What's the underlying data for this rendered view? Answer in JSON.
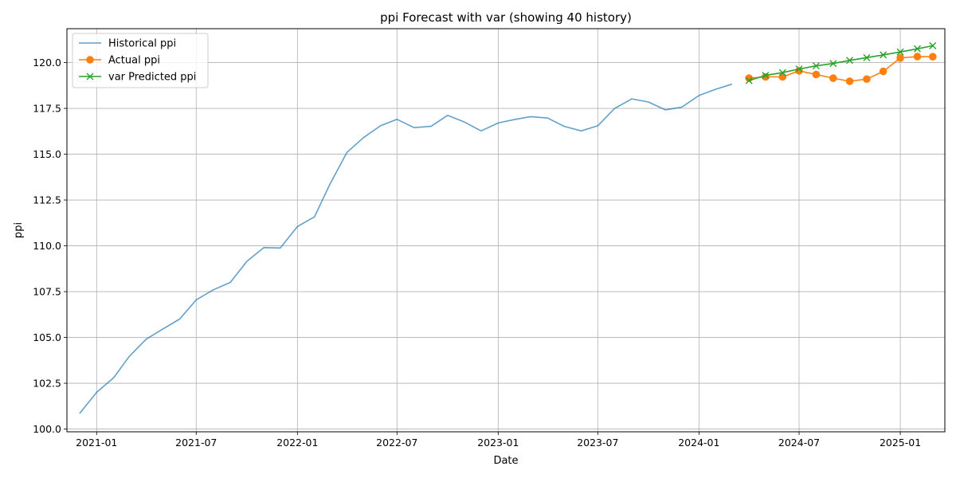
{
  "chart_data": {
    "type": "line",
    "title": "ppi Forecast with var (showing 40 history)",
    "xlabel": "Date",
    "ylabel": "ppi",
    "xlim": [
      "2020-11-08",
      "2025-03-23"
    ],
    "ylim": [
      99.85,
      121.85
    ],
    "grid": true,
    "legend_position": "top-left",
    "x_ticks": [
      "2021-01",
      "2021-07",
      "2022-01",
      "2022-07",
      "2023-01",
      "2023-07",
      "2024-01",
      "2024-07",
      "2025-01"
    ],
    "y_ticks": [
      100.0,
      102.5,
      105.0,
      107.5,
      110.0,
      112.5,
      115.0,
      117.5,
      120.0
    ],
    "series": [
      {
        "name": "Historical ppi",
        "color": "#1f77b4",
        "opacity": 0.7,
        "marker": "none",
        "points": [
          [
            "2020-12-01",
            100.85
          ],
          [
            "2021-01-01",
            102.0
          ],
          [
            "2021-02-01",
            102.8
          ],
          [
            "2021-03-01",
            103.95
          ],
          [
            "2021-04-01",
            104.9
          ],
          [
            "2021-05-01",
            105.45
          ],
          [
            "2021-06-01",
            106.0
          ],
          [
            "2021-07-01",
            107.05
          ],
          [
            "2021-08-01",
            107.6
          ],
          [
            "2021-09-01",
            108.0
          ],
          [
            "2021-10-01",
            109.15
          ],
          [
            "2021-11-01",
            109.9
          ],
          [
            "2021-12-01",
            109.88
          ],
          [
            "2022-01-01",
            111.05
          ],
          [
            "2022-02-01",
            111.58
          ],
          [
            "2022-03-01",
            113.35
          ],
          [
            "2022-04-01",
            115.1
          ],
          [
            "2022-05-01",
            115.9
          ],
          [
            "2022-06-01",
            116.55
          ],
          [
            "2022-07-01",
            116.9
          ],
          [
            "2022-08-01",
            116.45
          ],
          [
            "2022-09-01",
            116.52
          ],
          [
            "2022-10-01",
            117.12
          ],
          [
            "2022-11-01",
            116.75
          ],
          [
            "2022-12-01",
            116.27
          ],
          [
            "2023-01-01",
            116.7
          ],
          [
            "2023-02-01",
            116.9
          ],
          [
            "2023-03-01",
            117.05
          ],
          [
            "2023-04-01",
            116.97
          ],
          [
            "2023-05-01",
            116.52
          ],
          [
            "2023-06-01",
            116.27
          ],
          [
            "2023-07-01",
            116.55
          ],
          [
            "2023-08-01",
            117.5
          ],
          [
            "2023-09-01",
            118.02
          ],
          [
            "2023-10-01",
            117.85
          ],
          [
            "2023-11-01",
            117.42
          ],
          [
            "2023-12-01",
            117.57
          ],
          [
            "2024-01-01",
            118.2
          ],
          [
            "2024-02-01",
            118.55
          ],
          [
            "2024-03-01",
            118.82
          ]
        ]
      },
      {
        "name": "Actual ppi",
        "color": "#ff7f0e",
        "opacity": 1,
        "marker": "circle",
        "points": [
          [
            "2024-04-01",
            119.15
          ],
          [
            "2024-05-01",
            119.22
          ],
          [
            "2024-06-01",
            119.22
          ],
          [
            "2024-07-01",
            119.55
          ],
          [
            "2024-08-01",
            119.35
          ],
          [
            "2024-09-01",
            119.15
          ],
          [
            "2024-10-01",
            118.98
          ],
          [
            "2024-11-01",
            119.1
          ],
          [
            "2024-12-01",
            119.52
          ],
          [
            "2025-01-01",
            120.25
          ],
          [
            "2025-02-01",
            120.33
          ],
          [
            "2025-03-01",
            120.32
          ]
        ]
      },
      {
        "name": "var Predicted ppi",
        "color": "#2ca02c",
        "opacity": 1,
        "marker": "x",
        "points": [
          [
            "2024-04-01",
            119.02
          ],
          [
            "2024-05-01",
            119.3
          ],
          [
            "2024-06-01",
            119.45
          ],
          [
            "2024-07-01",
            119.65
          ],
          [
            "2024-08-01",
            119.82
          ],
          [
            "2024-09-01",
            119.95
          ],
          [
            "2024-10-01",
            120.12
          ],
          [
            "2024-11-01",
            120.27
          ],
          [
            "2024-12-01",
            120.42
          ],
          [
            "2025-01-01",
            120.58
          ],
          [
            "2025-02-01",
            120.75
          ],
          [
            "2025-03-01",
            120.92
          ]
        ]
      }
    ]
  }
}
